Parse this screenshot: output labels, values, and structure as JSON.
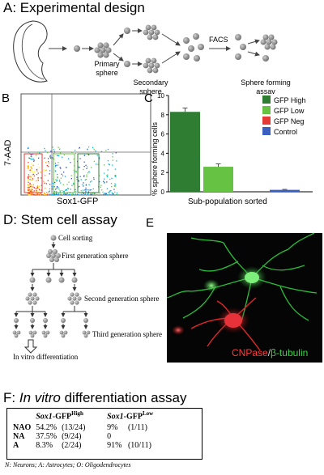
{
  "panel_a": {
    "title": "A: Experimental design",
    "primary_sphere": [
      "Primary",
      "sphere"
    ],
    "secondary_sphere": [
      "Secondary",
      "sphere"
    ],
    "facs": "FACS",
    "sphere_forming_assay": [
      "Sphere forming",
      "assay"
    ]
  },
  "panel_b": {
    "letter": "B",
    "ylabel": "7-AAD",
    "xlabel": "Sox1-GFP"
  },
  "panel_c": {
    "letter": "C",
    "ylabel": "% sphere forming cells",
    "xlabel": "Sub-population sorted"
  },
  "chart_data": {
    "type": "bar",
    "title": "",
    "xlabel": "Sub-population sorted",
    "ylabel": "% sphere forming cells",
    "ylim": [
      0,
      10
    ],
    "y_ticks": [
      "0",
      "2",
      "4",
      "6",
      "8",
      "10"
    ],
    "categories": [
      "GFP High",
      "GFP Low",
      "GFP Neg",
      "Control"
    ],
    "values": [
      8.3,
      2.6,
      0,
      0.2
    ],
    "errors": [
      0.4,
      0.3,
      0,
      0.05
    ],
    "legend": [
      "GFP High",
      "GFP Low",
      "GFP Neg",
      "Control"
    ],
    "legend_position": "top-right",
    "colors": [
      "#2e7d32",
      "#66c243",
      "#e53935",
      "#3b5fc0"
    ]
  },
  "panel_d": {
    "title": "D: Stem cell assay",
    "cell_sorting": "Cell sorting",
    "first_gen": "First generation sphere",
    "second_gen": "Second generation sphere",
    "third_gen": "Third generation sphere",
    "differentiation": "In vitro differentiation"
  },
  "panel_e": {
    "letter": "E",
    "caption_red": "CNPase",
    "caption_sep": "/",
    "caption_green": "β-tubulin"
  },
  "panel_f": {
    "title_prefix": "F: ",
    "title_italic": "In vitro",
    "title_rest": " differentiation assay",
    "col1_main": "Sox1",
    "col1_suffix": "-GFP",
    "col1_sup": "High",
    "col2_main": "Sox1",
    "col2_suffix": "-GFP",
    "col2_sup": "Low",
    "rows": [
      {
        "label": "NAO",
        "hi_pct": "54.2%",
        "hi_n": "(13/24)",
        "lo_pct": "9%",
        "lo_n": "(1/11)"
      },
      {
        "label": "NA",
        "hi_pct": "37.5%",
        "hi_n": "(9/24)",
        "lo_pct": "0",
        "lo_n": ""
      },
      {
        "label": "A",
        "hi_pct": "8.3%",
        "hi_n": "(2/24)",
        "lo_pct": "91%",
        "lo_n": "(10/11)"
      }
    ],
    "footnote": "N: Neurons; A: Astrocytes; O: Oligodendrocytes"
  }
}
